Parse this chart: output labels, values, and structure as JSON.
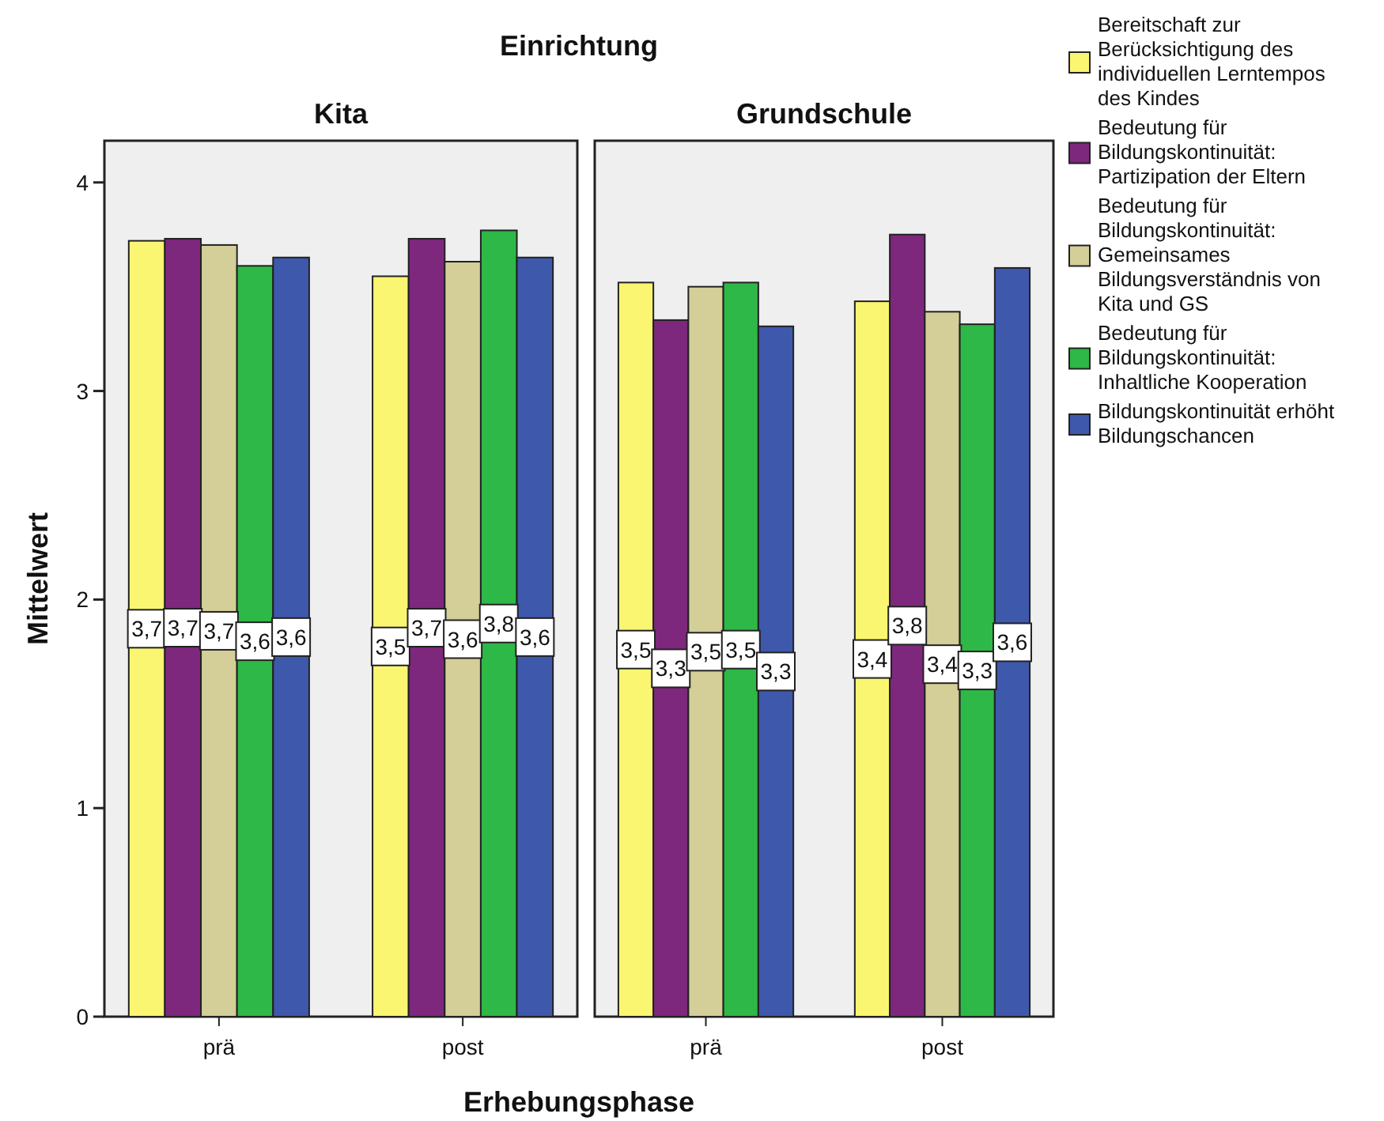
{
  "chart_data": [
    {
      "type": "bar",
      "title": "Kita",
      "xlabel": "Erhebungsphase",
      "ylabel": "Mittelwert",
      "annotations": [
        "Einrichtung"
      ],
      "categories": [
        "prä",
        "post"
      ],
      "ylim": [
        0,
        4.2
      ],
      "yticks": [
        0,
        1,
        2,
        3,
        4
      ],
      "grid": false,
      "series": [
        {
          "color": "#fbf671",
          "values": [
            3.72,
            3.55
          ],
          "value_labels": [
            "3,7",
            "3,5"
          ]
        },
        {
          "color": "#7e287d",
          "values": [
            3.73,
            3.73
          ],
          "value_labels": [
            "3,7",
            "3,7"
          ]
        },
        {
          "color": "#d4ce98",
          "values": [
            3.7,
            3.62
          ],
          "value_labels": [
            "3,7",
            "3,6"
          ]
        },
        {
          "color": "#2eb847",
          "values": [
            3.6,
            3.77
          ],
          "value_labels": [
            "3,6",
            "3,8"
          ]
        },
        {
          "color": "#3e58ac",
          "values": [
            3.64,
            3.64
          ],
          "value_labels": [
            "3,6",
            "3,6"
          ]
        }
      ]
    },
    {
      "type": "bar",
      "title": "Grundschule",
      "categories": [
        "prä",
        "post"
      ],
      "ylim": [
        0,
        4.2
      ],
      "yticks": [
        0,
        1,
        2,
        3,
        4
      ],
      "tick_labels": "x",
      "grid": false,
      "legend": "right",
      "series": [
        {
          "name": "Bereitschaft zur Berücksichtigung des individuellen Lerntempos des Kindes",
          "color": "#fbf671",
          "values": [
            3.52,
            3.43
          ],
          "value_labels": [
            "3,5",
            "3,4"
          ]
        },
        {
          "name": "Bedeutung für Bildungskontinuität: Partizipation der Eltern",
          "color": "#7e287d",
          "values": [
            3.34,
            3.75
          ],
          "value_labels": [
            "3,3",
            "3,8"
          ]
        },
        {
          "name": "Bedeutung für Bildungskontinuität: Gemeinsames Bildungsverständnis von Kita und GS",
          "color": "#d4ce98",
          "values": [
            3.5,
            3.38
          ],
          "value_labels": [
            "3,5",
            "3,4"
          ]
        },
        {
          "name": "Bedeutung für Bildungskontinuität: Inhaltliche Kooperation",
          "color": "#2eb847",
          "values": [
            3.52,
            3.32
          ],
          "value_labels": [
            "3,5",
            "3,3"
          ]
        },
        {
          "name": "Bildungskontinuität erhöht Bildungschancen",
          "color": "#3e58ac",
          "values": [
            3.31,
            3.59
          ],
          "value_labels": [
            "3,3",
            "3,6"
          ]
        }
      ]
    }
  ]
}
